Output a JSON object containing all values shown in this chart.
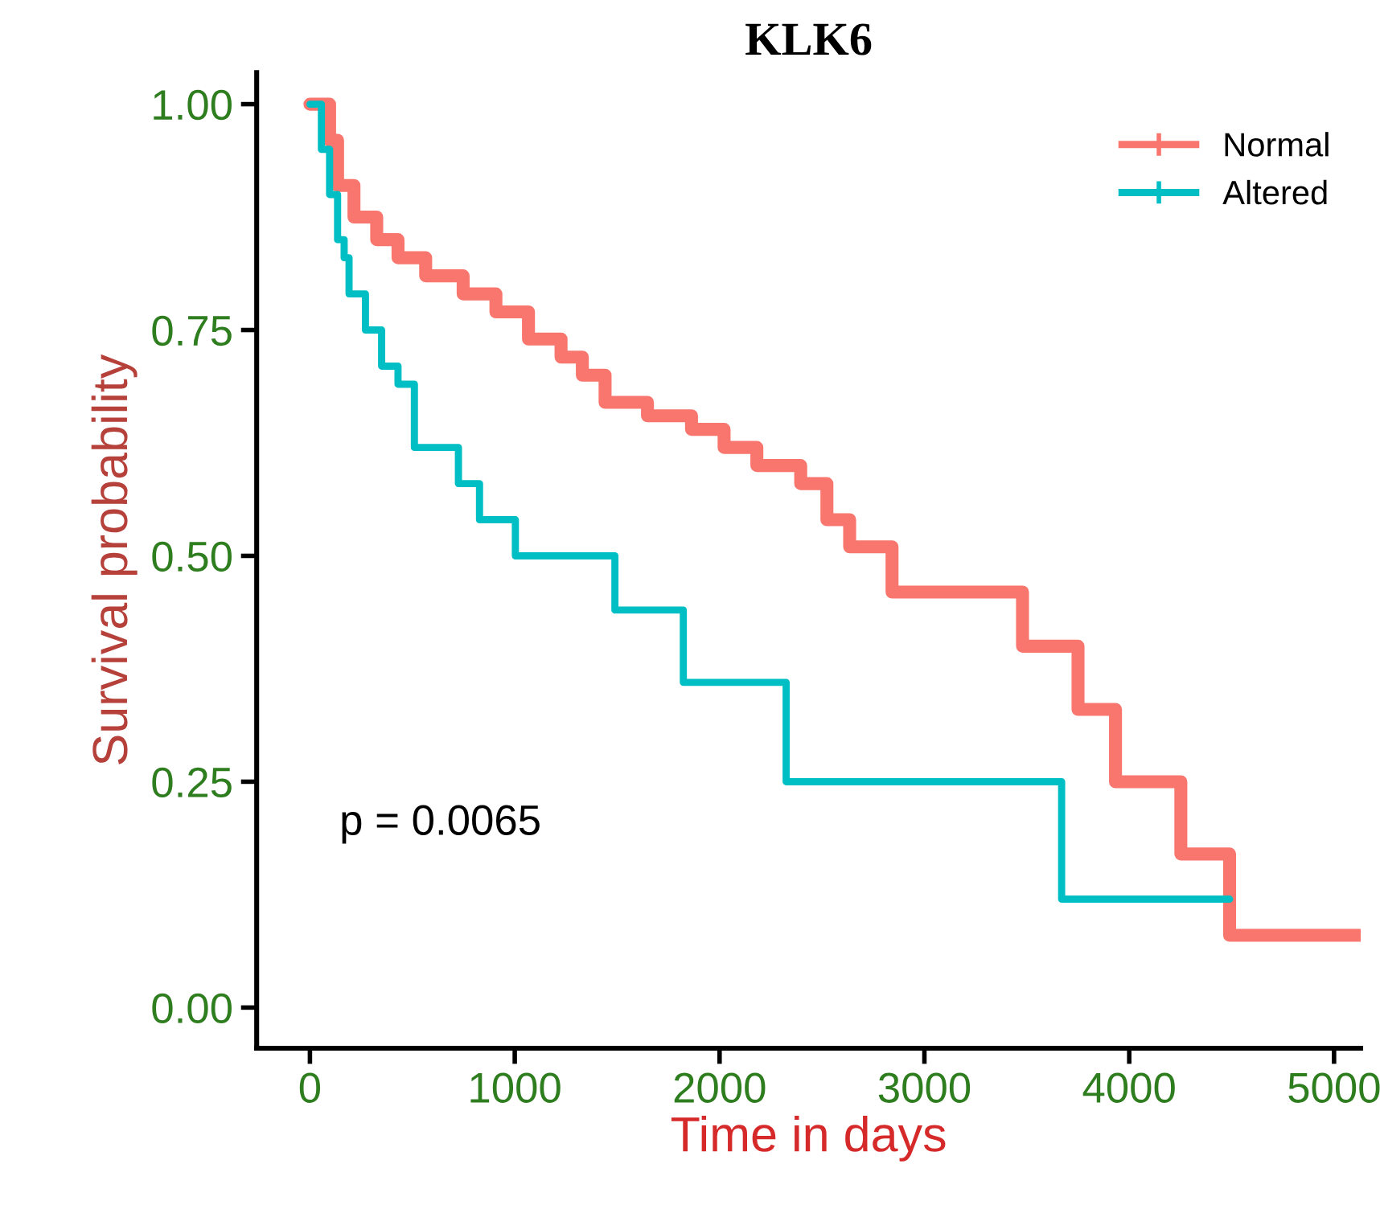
{
  "chart_data": {
    "type": "step",
    "title": "KLK6",
    "xlabel": "Time in days",
    "ylabel": "Survival probability",
    "xlim": [
      -260,
      5130
    ],
    "xticks": [
      0,
      1000,
      2000,
      3000,
      4000,
      5000
    ],
    "ylim": [
      -0.045,
      1.035
    ],
    "yticks": [
      {
        "value": 0,
        "label": "0.00"
      },
      {
        "value": 0.25,
        "label": "0.25"
      },
      {
        "value": 0.5,
        "label": "0.50"
      },
      {
        "value": 0.75,
        "label": "0.75"
      },
      {
        "value": 1,
        "label": "1.00"
      }
    ],
    "grid": false,
    "legend": "top right",
    "annotations": [
      "p = 0.0065"
    ],
    "series": [
      {
        "name": "Normal",
        "color": "#f8766d",
        "x": [
          0,
          96,
          135,
          215,
          326,
          430,
          565,
          748,
          908,
          1067,
          1226,
          1330,
          1441,
          1648,
          1863,
          2022,
          2182,
          2396,
          2524,
          2635,
          2842,
          3479,
          3750,
          3933,
          4252,
          4490,
          5127
        ],
        "values": [
          1.0,
          0.96,
          0.91,
          0.875,
          0.85,
          0.83,
          0.81,
          0.79,
          0.77,
          0.74,
          0.72,
          0.7,
          0.67,
          0.655,
          0.64,
          0.62,
          0.6,
          0.58,
          0.54,
          0.51,
          0.46,
          0.4,
          0.33,
          0.25,
          0.17,
          0.08,
          0.08
        ]
      },
      {
        "name": "Altered",
        "color": "#00bfc4",
        "x": [
          0,
          56,
          96,
          135,
          167,
          191,
          271,
          350,
          430,
          510,
          725,
          828,
          1003,
          1489,
          1823,
          2325,
          3670,
          4490
        ],
        "values": [
          1.0,
          0.95,
          0.9,
          0.85,
          0.83,
          0.79,
          0.75,
          0.71,
          0.69,
          0.62,
          0.58,
          0.54,
          0.5,
          0.44,
          0.36,
          0.25,
          0.12,
          0.12
        ]
      }
    ]
  }
}
